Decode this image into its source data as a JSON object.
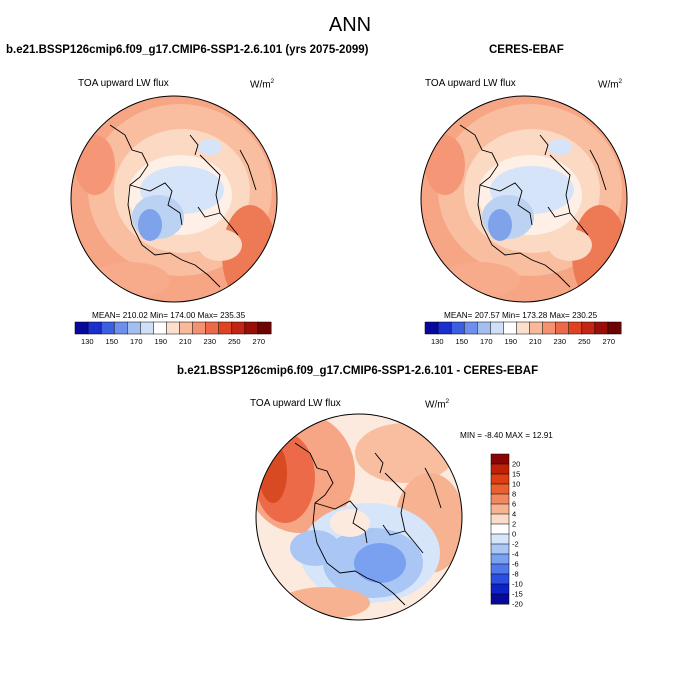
{
  "title": "ANN",
  "panels": [
    {
      "id": "test",
      "header": "b.e21.BSSP126cmip6.f09_g17.CMIP6-SSP1-2.6.101 (yrs 2075-2099)",
      "variable": "TOA upward LW flux",
      "units_base": "W/m",
      "units_exp": "2",
      "stats": "MEAN= 210.02  Min= 174.00  Max= 235.35"
    },
    {
      "id": "ref",
      "header": "CERES-EBAF",
      "variable": "TOA upward LW flux",
      "units_base": "W/m",
      "units_exp": "2",
      "stats": "MEAN= 207.57  Min= 173.28  Max= 230.25"
    },
    {
      "id": "diff",
      "header": "b.e21.BSSP126cmip6.f09_g17.CMIP6-SSP1-2.6.101 - CERES-EBAF",
      "variable": "TOA upward LW flux",
      "units_base": "W/m",
      "units_exp": "2",
      "stats": "MIN = -8.40 MAX = 12.91"
    }
  ],
  "colors": {
    "abs_colorbar": [
      "#08089c",
      "#1a2fcf",
      "#3a5fe0",
      "#6e90ec",
      "#a3bff2",
      "#cfdff7",
      "#ffffff",
      "#fde0cc",
      "#f9b897",
      "#f39170",
      "#ec6a48",
      "#df4322",
      "#c42414",
      "#9a0d08",
      "#6d0404"
    ],
    "diff_colorbar": [
      "#08089c",
      "#0d22c8",
      "#2a4ee0",
      "#4f78ea",
      "#7aa0f0",
      "#a9c6f5",
      "#d6e5fa",
      "#ffffff",
      "#fcdcc8",
      "#f7b391",
      "#f18862",
      "#e9612f",
      "#dd3e14",
      "#c02008",
      "#8a0505"
    ]
  },
  "chart_data": [
    {
      "type": "heatmap",
      "title": "b.e21.BSSP126cmip6.f09_g17.CMIP6-SSP1-2.6.101 (yrs 2075-2099)",
      "subtitle": "TOA upward LW flux",
      "projection": "north-polar-stereographic",
      "units": "W/m2",
      "colorbar_ticks": [
        130,
        150,
        170,
        190,
        210,
        230,
        250,
        270
      ],
      "colorbar_range": [
        120,
        280
      ],
      "mean": 210.02,
      "min": 174.0,
      "max": 235.35
    },
    {
      "type": "heatmap",
      "title": "CERES-EBAF",
      "subtitle": "TOA upward LW flux",
      "projection": "north-polar-stereographic",
      "units": "W/m2",
      "colorbar_ticks": [
        130,
        150,
        170,
        190,
        210,
        230,
        250,
        270
      ],
      "colorbar_range": [
        120,
        280
      ],
      "mean": 207.57,
      "min": 173.28,
      "max": 230.25
    },
    {
      "type": "heatmap",
      "title": "b.e21.BSSP126cmip6.f09_g17.CMIP6-SSP1-2.6.101 - CERES-EBAF",
      "subtitle": "TOA upward LW flux",
      "projection": "north-polar-stereographic",
      "units": "W/m2",
      "colorbar_ticks": [
        20,
        15,
        10,
        8,
        6,
        4,
        2,
        0,
        -2,
        -4,
        -6,
        -8,
        -10,
        -15,
        -20
      ],
      "min": -8.4,
      "max": 12.91
    }
  ]
}
